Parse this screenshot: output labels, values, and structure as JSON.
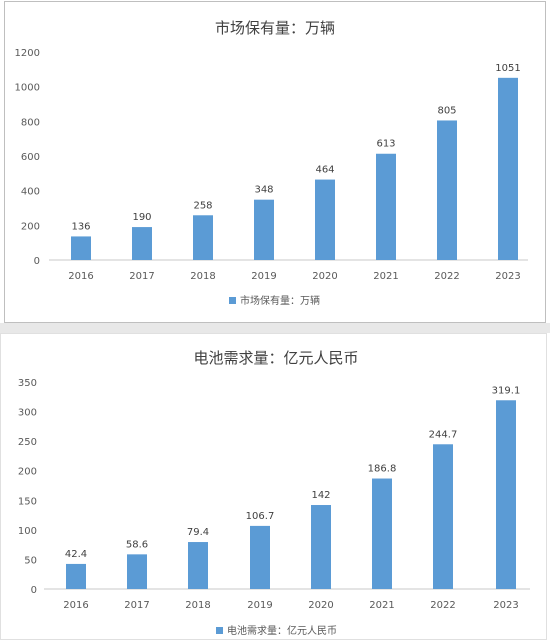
{
  "chart_data": [
    {
      "type": "bar",
      "title": "市场保有量：万辆",
      "legend": "市场保有量：万辆",
      "legend_position": "bottom",
      "categories": [
        "2016",
        "2017",
        "2018",
        "2019",
        "2020",
        "2021",
        "2022",
        "2023"
      ],
      "values": [
        136,
        190,
        258,
        348,
        464,
        613,
        805,
        1051
      ],
      "data_labels": [
        "136",
        "190",
        "258",
        "348",
        "464",
        "613",
        "805",
        "1051"
      ],
      "ylim": [
        0,
        1200
      ],
      "yticks": [
        "0",
        "200",
        "400",
        "600",
        "800",
        "1000",
        "1200"
      ],
      "grid": false,
      "bar_color": "#5b9bd5"
    },
    {
      "type": "bar",
      "title": "电池需求量：亿元人民币",
      "legend": "电池需求量：亿元人民币",
      "legend_position": "bottom",
      "categories": [
        "2016",
        "2017",
        "2018",
        "2019",
        "2020",
        "2021",
        "2022",
        "2023"
      ],
      "values": [
        42.4,
        58.6,
        79.4,
        106.7,
        142,
        186.8,
        244.7,
        319.1
      ],
      "data_labels": [
        "42.4",
        "58.6",
        "79.4",
        "106.7",
        "142",
        "186.8",
        "244.7",
        "319.1"
      ],
      "ylim": [
        0,
        350
      ],
      "yticks": [
        "0",
        "50",
        "100",
        "150",
        "200",
        "250",
        "300",
        "350"
      ],
      "grid": false,
      "bar_color": "#5b9bd5"
    }
  ]
}
